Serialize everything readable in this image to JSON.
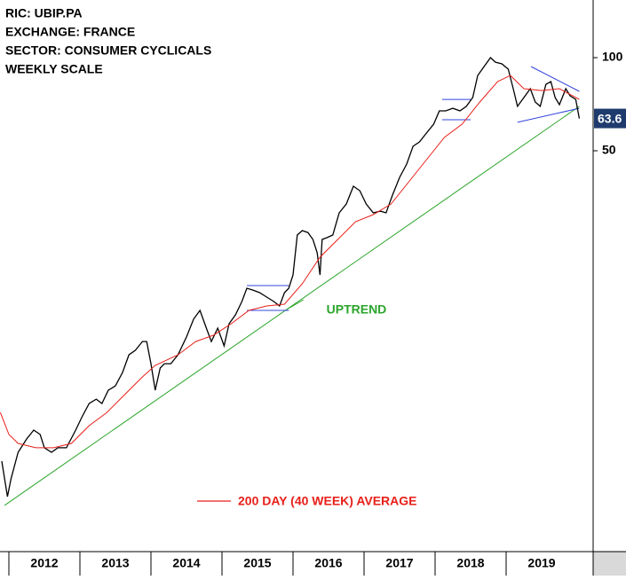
{
  "chart_data": {
    "type": "line",
    "header": [
      "RIC: UBIP.PA",
      "EXCHANGE: FRANCE",
      "SECTOR: CONSUMER CYCLICALS",
      "WEEKLY SCALE"
    ],
    "log_scale": true,
    "xlim": [
      2011.875,
      2020.225
    ],
    "ylim": [
      2.53,
      153.6
    ],
    "xticks": [
      2012,
      2013,
      2014,
      2015,
      2016,
      2017,
      2018,
      2019
    ],
    "yticks": [
      50,
      100
    ],
    "series": [
      {
        "color": "#000000",
        "x": [
          2011.9,
          2011.98,
          2012.03,
          2012.13,
          2012.25,
          2012.35,
          2012.44,
          2012.5,
          2012.6,
          2012.69,
          2012.81,
          2012.94,
          2013.03,
          2013.13,
          2013.23,
          2013.31,
          2013.4,
          2013.5,
          2013.6,
          2013.69,
          2013.78,
          2013.88,
          2013.94,
          2014.0,
          2014.06,
          2014.13,
          2014.19,
          2014.28,
          2014.38,
          2014.5,
          2014.6,
          2014.69,
          2014.78,
          2014.85,
          2014.94,
          2015.03,
          2015.1,
          2015.19,
          2015.28,
          2015.35,
          2015.44,
          2015.53,
          2015.63,
          2015.73,
          2015.81,
          2015.88,
          2015.94,
          2016.0,
          2016.06,
          2016.13,
          2016.21,
          2016.28,
          2016.34,
          2016.38,
          2016.41,
          2016.48,
          2016.56,
          2016.65,
          2016.75,
          2016.85,
          2016.94,
          2017.03,
          2017.13,
          2017.23,
          2017.31,
          2017.4,
          2017.5,
          2017.6,
          2017.69,
          2017.78,
          2017.88,
          2017.98,
          2018.06,
          2018.15,
          2018.25,
          2018.35,
          2018.44,
          2018.53,
          2018.6,
          2018.69,
          2018.78,
          2018.85,
          2018.94,
          2019.03,
          2019.1,
          2019.16,
          2019.25,
          2019.34,
          2019.41,
          2019.48,
          2019.56,
          2019.63,
          2019.69,
          2019.75,
          2019.84,
          2019.9,
          2019.98,
          2020.03
        ],
        "values": [
          4.96,
          3.81,
          4.35,
          5.3,
          5.85,
          6.25,
          6.05,
          5.48,
          5.3,
          5.48,
          5.48,
          6.25,
          6.9,
          7.62,
          7.87,
          7.62,
          8.41,
          8.69,
          9.6,
          10.95,
          11.32,
          12.09,
          12.09,
          10.25,
          8.41,
          9.92,
          10.25,
          10.25,
          10.95,
          12.5,
          14.27,
          15.24,
          13.35,
          12.09,
          13.35,
          11.7,
          13.8,
          14.74,
          16.28,
          17.97,
          17.7,
          17.39,
          16.83,
          16.28,
          15.75,
          17.39,
          17.97,
          19.84,
          26.71,
          27.6,
          27.2,
          25.84,
          23.4,
          19.84,
          25.84,
          26.2,
          26.71,
          31.5,
          33.65,
          38.4,
          37.15,
          33.65,
          31.5,
          31.9,
          31.5,
          35.94,
          41.0,
          45.3,
          51.7,
          53.4,
          57.1,
          60.95,
          67.3,
          67.3,
          68.6,
          67.3,
          69.6,
          74.3,
          87.6,
          93.6,
          100,
          96.7,
          95.5,
          91.8,
          79.4,
          69.6,
          74.3,
          79.4,
          71.9,
          69.6,
          82.0,
          83.7,
          74.3,
          70.5,
          79.4,
          75.3,
          73.3,
          63.6
        ]
      },
      {
        "name": "200 DAY (40 WEEK) AVERAGE",
        "color": "#e8201a",
        "x": [
          2011.88,
          2012.0,
          2012.13,
          2012.38,
          2012.63,
          2012.88,
          2013.13,
          2013.38,
          2013.63,
          2013.88,
          2014.06,
          2014.38,
          2014.63,
          2014.88,
          2015.13,
          2015.38,
          2015.63,
          2015.88,
          2016.13,
          2016.38,
          2016.63,
          2016.88,
          2017.13,
          2017.38,
          2017.63,
          2017.88,
          2018.13,
          2018.38,
          2018.63,
          2018.88,
          2019.06,
          2019.25,
          2019.5,
          2019.75,
          2020.03
        ],
        "values": [
          7.13,
          6.05,
          5.66,
          5.48,
          5.48,
          5.66,
          6.46,
          7.13,
          8.14,
          9.29,
          10.12,
          10.95,
          12.09,
          12.67,
          13.8,
          15.24,
          15.75,
          15.96,
          18.57,
          22.65,
          25.84,
          29.49,
          31.09,
          33.65,
          39.7,
          46.8,
          55.2,
          60.95,
          71.9,
          83.7,
          87.6,
          79.4,
          78.3,
          79.4,
          73.3
        ]
      }
    ],
    "trendlines": [
      {
        "label": "UPTREND",
        "color": "#2aa52a",
        "x": [
          2011.94,
          2020.03
        ],
        "values": [
          3.57,
          69.6
        ]
      },
      {
        "color": "#3344dd",
        "x": [
          2019.35,
          2020.03
        ],
        "values": [
          93.6,
          77.8
        ]
      },
      {
        "color": "#3344dd",
        "x": [
          2019.16,
          2020.03
        ],
        "values": [
          61.8,
          68.6
        ]
      },
      {
        "color": "#3344dd",
        "x": [
          2015.35,
          2015.94
        ],
        "values": [
          18.33,
          18.33
        ]
      },
      {
        "color": "#3344dd",
        "x": [
          2015.35,
          2015.94
        ],
        "values": [
          15.24,
          15.24
        ]
      },
      {
        "color": "#3344dd",
        "x": [
          2018.1,
          2018.5
        ],
        "values": [
          73.3,
          73.3
        ]
      },
      {
        "color": "#3344dd",
        "x": [
          2018.1,
          2018.5
        ],
        "values": [
          63.0,
          63.0
        ]
      }
    ]
  }
}
